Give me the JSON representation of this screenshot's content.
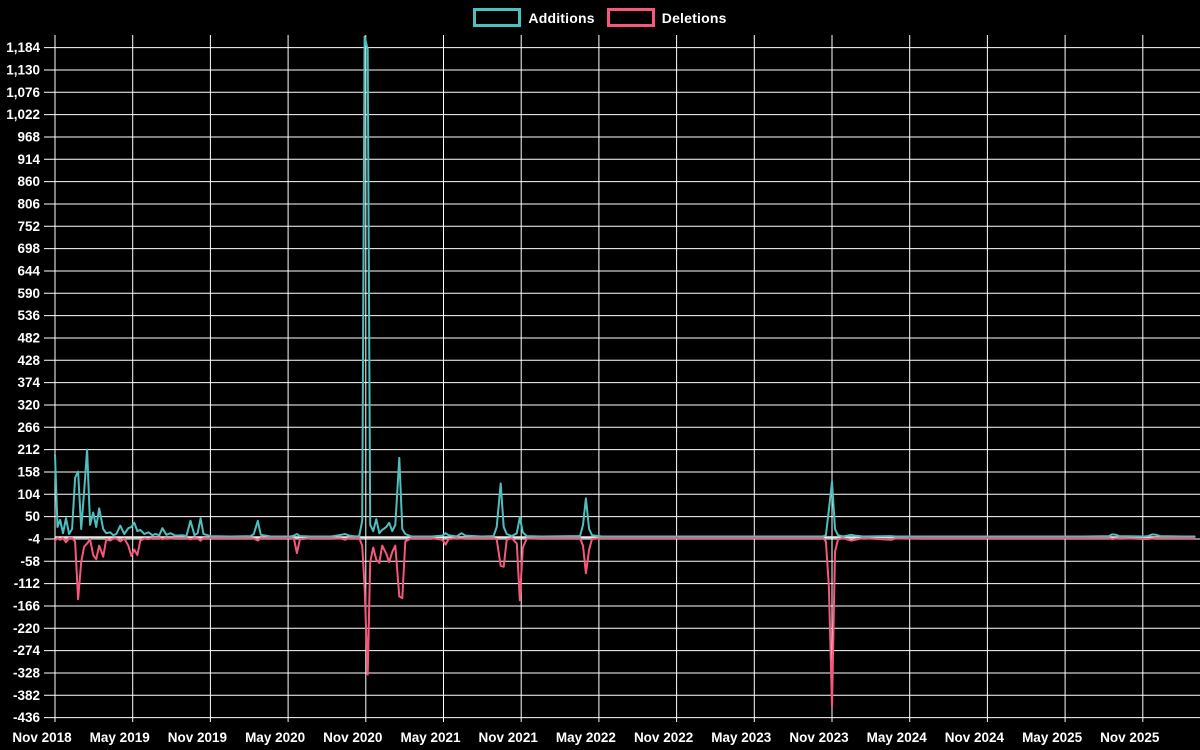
{
  "legend": {
    "items": [
      {
        "label": "Additions",
        "color": "#4DBFBF"
      },
      {
        "label": "Deletions",
        "color": "#F5587B"
      }
    ]
  },
  "colors": {
    "background": "#000000",
    "grid": "#ffffff",
    "zero_line": "#e8e8e8",
    "text": "#ffffff",
    "additions": "#4DBFBF",
    "deletions": "#F5587B"
  },
  "chart_data": {
    "type": "line",
    "title": "",
    "xlabel": "",
    "ylabel": "",
    "legend_position": "top-center",
    "grid": true,
    "x_axis": {
      "tick_labels": [
        "Nov 2018",
        "May 2019",
        "Nov 2019",
        "May 2020",
        "Nov 2020",
        "May 2021",
        "Nov 2021",
        "May 2022",
        "Nov 2022",
        "May 2023",
        "Nov 2023",
        "May 2024",
        "Nov 2024",
        "May 2025",
        "Nov 2025"
      ],
      "tick_interval_months": 6,
      "range_months": [
        0,
        88
      ]
    },
    "y_axis": {
      "tick_labels": [
        "1,184",
        "1,130",
        "1,076",
        "1,022",
        "968",
        "914",
        "860",
        "806",
        "752",
        "698",
        "644",
        "590",
        "536",
        "482",
        "428",
        "374",
        "320",
        "266",
        "212",
        "158",
        "104",
        "50",
        "-4",
        "-58",
        "-112",
        "-166",
        "-220",
        "-274",
        "-328",
        "-382",
        "-436"
      ],
      "step": 54,
      "min": -436,
      "max": 1184
    },
    "series": [
      {
        "name": "Additions",
        "color": "#4DBFBF"
      },
      {
        "name": "Deletions",
        "color": "#F5587B"
      }
    ],
    "points_format": "[months_since_Nov_2018, additions, deletions] (weekly commit code frequency, values estimated from plot)",
    "points": [
      [
        0,
        200,
        -8
      ],
      [
        0.19,
        25,
        -2
      ],
      [
        0.39,
        42,
        -6
      ],
      [
        0.62,
        10,
        -2
      ],
      [
        0.85,
        46,
        -12
      ],
      [
        1.09,
        8,
        -2
      ],
      [
        1.32,
        20,
        -2
      ],
      [
        1.55,
        144,
        -10
      ],
      [
        1.78,
        159,
        -150
      ],
      [
        2.02,
        20,
        -60
      ],
      [
        2.25,
        110,
        -23
      ],
      [
        2.48,
        212,
        -15
      ],
      [
        2.71,
        30,
        -5
      ],
      [
        2.95,
        60,
        -43
      ],
      [
        3.18,
        25,
        -53
      ],
      [
        3.41,
        70,
        -20
      ],
      [
        3.72,
        20,
        -47
      ],
      [
        3.95,
        10,
        -5
      ],
      [
        4.26,
        12,
        -8
      ],
      [
        4.5,
        5,
        -3
      ],
      [
        4.73,
        8,
        -3
      ],
      [
        5.04,
        28,
        -10
      ],
      [
        5.35,
        8,
        -3
      ],
      [
        5.66,
        22,
        -20
      ],
      [
        5.89,
        25,
        -45
      ],
      [
        6.12,
        35,
        -30
      ],
      [
        6.36,
        15,
        -43
      ],
      [
        6.59,
        18,
        -8
      ],
      [
        6.9,
        8,
        -3
      ],
      [
        7.21,
        12,
        -4
      ],
      [
        7.52,
        5,
        -2
      ],
      [
        7.75,
        8,
        -2
      ],
      [
        8.06,
        5,
        -2
      ],
      [
        8.29,
        22,
        -4
      ],
      [
        8.6,
        6,
        -2
      ],
      [
        8.91,
        10,
        -3
      ],
      [
        9.3,
        4,
        -2
      ],
      [
        9.84,
        5,
        -2
      ],
      [
        10.15,
        3,
        -2
      ],
      [
        10.46,
        40,
        -5
      ],
      [
        10.77,
        5,
        -2
      ],
      [
        11.01,
        10,
        -3
      ],
      [
        11.24,
        46,
        -8
      ],
      [
        11.47,
        8,
        -2
      ],
      [
        12.01,
        3,
        -2
      ],
      [
        13.56,
        2,
        -2
      ],
      [
        15.11,
        3,
        -2
      ],
      [
        15.35,
        8,
        -3
      ],
      [
        15.66,
        40,
        -8
      ],
      [
        15.89,
        6,
        -2
      ],
      [
        16.66,
        2,
        -2
      ],
      [
        18.22,
        2,
        -2
      ],
      [
        18.45,
        4,
        -3
      ],
      [
        18.68,
        8,
        -38
      ],
      [
        18.91,
        3,
        -5
      ],
      [
        19.77,
        2,
        -2
      ],
      [
        21.32,
        2,
        -2
      ],
      [
        22.09,
        6,
        -3
      ],
      [
        22.4,
        8,
        -6
      ],
      [
        22.71,
        4,
        -2
      ],
      [
        23.25,
        2,
        -2
      ],
      [
        23.49,
        3,
        -2
      ],
      [
        23.72,
        40,
        -20
      ],
      [
        23.91,
        1211,
        -120
      ],
      [
        24.15,
        1180,
        -332
      ],
      [
        24.34,
        30,
        -60
      ],
      [
        24.57,
        15,
        -25
      ],
      [
        24.81,
        44,
        -54
      ],
      [
        25.04,
        10,
        -62
      ],
      [
        25.27,
        18,
        -20
      ],
      [
        25.58,
        25,
        -40
      ],
      [
        25.81,
        35,
        -60
      ],
      [
        26.05,
        15,
        -35
      ],
      [
        26.28,
        30,
        -20
      ],
      [
        26.59,
        192,
        -143
      ],
      [
        26.82,
        20,
        -147
      ],
      [
        27.05,
        8,
        -10
      ],
      [
        27.52,
        2,
        -2
      ],
      [
        29.07,
        2,
        -2
      ],
      [
        29.92,
        4,
        -6
      ],
      [
        30.16,
        10,
        -18
      ],
      [
        30.39,
        5,
        -4
      ],
      [
        31.01,
        2,
        -2
      ],
      [
        31.39,
        10,
        -3
      ],
      [
        31.7,
        4,
        -2
      ],
      [
        32.94,
        2,
        -2
      ],
      [
        33.87,
        3,
        -2
      ],
      [
        34.11,
        25,
        -5
      ],
      [
        34.42,
        130,
        -69
      ],
      [
        34.65,
        25,
        -71
      ],
      [
        34.88,
        8,
        -6
      ],
      [
        35.27,
        3,
        -2
      ],
      [
        35.66,
        10,
        -15
      ],
      [
        35.89,
        48,
        -152
      ],
      [
        36.12,
        12,
        -25
      ],
      [
        36.43,
        3,
        -3
      ],
      [
        37.59,
        2,
        -2
      ],
      [
        39.92,
        3,
        -2
      ],
      [
        40.54,
        3,
        -2
      ],
      [
        40.77,
        30,
        -20
      ],
      [
        41.0,
        94,
        -87
      ],
      [
        41.24,
        20,
        -30
      ],
      [
        41.47,
        5,
        -4
      ],
      [
        42.24,
        2,
        -2
      ],
      [
        46.12,
        2,
        -2
      ],
      [
        50.0,
        2,
        -2
      ],
      [
        53.87,
        2,
        -2
      ],
      [
        56.97,
        2,
        -2
      ],
      [
        59.3,
        2,
        -2
      ],
      [
        59.53,
        5,
        -10
      ],
      [
        59.76,
        67,
        -119
      ],
      [
        60.0,
        135,
        -410
      ],
      [
        60.23,
        20,
        -35
      ],
      [
        60.46,
        5,
        -5
      ],
      [
        60.85,
        2,
        -2
      ],
      [
        61.47,
        6,
        -8
      ],
      [
        61.78,
        4,
        -6
      ],
      [
        62.4,
        2,
        -2
      ],
      [
        64.57,
        3,
        -6
      ],
      [
        64.88,
        2,
        -3
      ],
      [
        67.05,
        2,
        -2
      ],
      [
        73.25,
        2,
        -2
      ],
      [
        79.45,
        2,
        -2
      ],
      [
        81.39,
        3,
        -2
      ],
      [
        81.62,
        7,
        -4
      ],
      [
        81.93,
        6,
        -3
      ],
      [
        82.17,
        3,
        -2
      ],
      [
        84.1,
        2,
        -4
      ],
      [
        84.41,
        3,
        -4
      ],
      [
        84.72,
        7,
        -3
      ],
      [
        85.03,
        6,
        -2
      ],
      [
        85.34,
        3,
        -2
      ],
      [
        87.2,
        2,
        -2
      ],
      [
        88.0,
        2,
        -2
      ]
    ]
  }
}
